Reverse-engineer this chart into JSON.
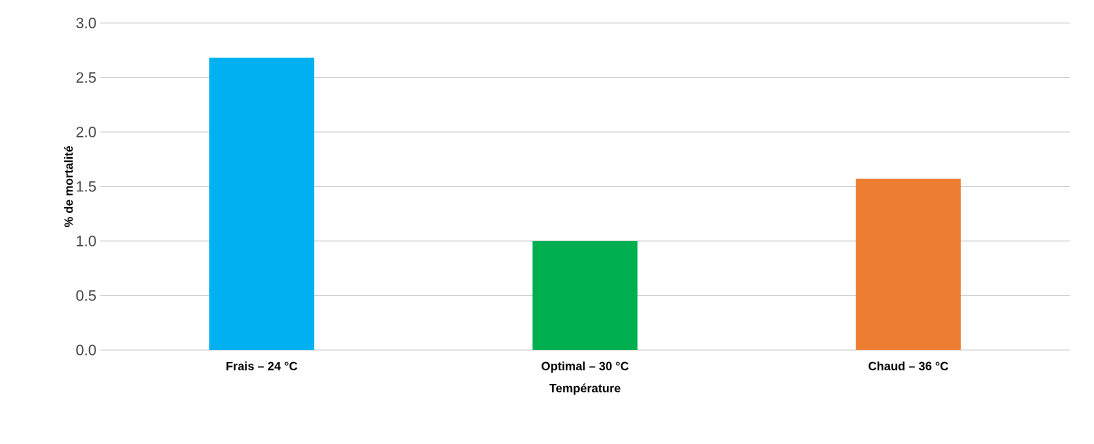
{
  "chart_data": {
    "type": "bar",
    "xlabel": "Température",
    "ylabel": "% de mortalité",
    "categories": [
      "Frais – 24 °C",
      "Optimal – 30 °C",
      "Chaud – 36 °C"
    ],
    "values": [
      2.68,
      1.0,
      1.57
    ],
    "colors": [
      "#00b0f0",
      "#00b050",
      "#ed7d31"
    ],
    "ylim": [
      0,
      3
    ],
    "yticks": [
      {
        "value": 0,
        "label": "0.0"
      },
      {
        "value": 0.5,
        "label": "0.5"
      },
      {
        "value": 1,
        "label": "1.0"
      },
      {
        "value": 1.5,
        "label": "1.5"
      },
      {
        "value": 2,
        "label": "2.0"
      },
      {
        "value": 2.5,
        "label": "2.5"
      },
      {
        "value": 3,
        "label": "3.0"
      }
    ],
    "grid": "y"
  }
}
